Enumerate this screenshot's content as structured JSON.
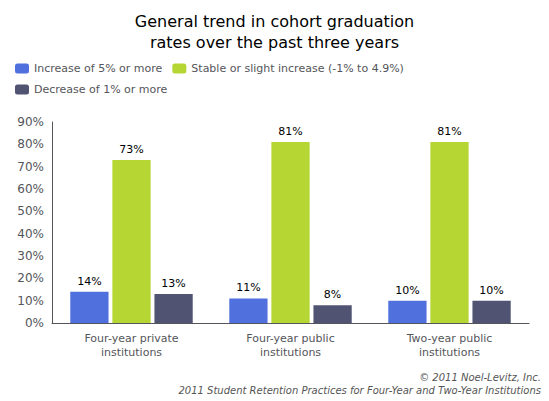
{
  "chart_data": {
    "type": "bar",
    "title": "General trend in cohort graduation\nrates over the past three years",
    "categories": [
      "Four-year private\ninstitutions",
      "Four-year public\ninstitutions",
      "Two-year public\ninstitutions"
    ],
    "series": [
      {
        "name": "Increase of 5% or more",
        "values": [
          14,
          11,
          10
        ],
        "value_labels": [
          "14%",
          "11%",
          "10%"
        ]
      },
      {
        "name": "Stable or slight increase (-1% to 4.9%)",
        "values": [
          73,
          81,
          81
        ],
        "value_labels": [
          "73%",
          "81%",
          "81%"
        ]
      },
      {
        "name": "Decrease of 1% or more",
        "values": [
          13,
          8,
          10
        ],
        "value_labels": [
          "13%",
          "8%",
          "10%"
        ]
      }
    ],
    "ylim": [
      0,
      90
    ],
    "yticks": [
      {
        "value": 0,
        "label": "0%"
      },
      {
        "value": 10,
        "label": "10%"
      },
      {
        "value": 20,
        "label": "20%"
      },
      {
        "value": 30,
        "label": "30%"
      },
      {
        "value": 40,
        "label": "40%"
      },
      {
        "value": 50,
        "label": "50%"
      },
      {
        "value": 60,
        "label": "60%"
      },
      {
        "value": 70,
        "label": "70%"
      },
      {
        "value": 80,
        "label": "80%"
      },
      {
        "value": 90,
        "label": "90%"
      }
    ],
    "grid": false,
    "legend": "upper left",
    "data_labels": true,
    "annotations": [
      "© 2011 Noel-Levitz, Inc.",
      "2011 Student Retention Practices for Four-Year and Two-Year Institutions"
    ]
  }
}
